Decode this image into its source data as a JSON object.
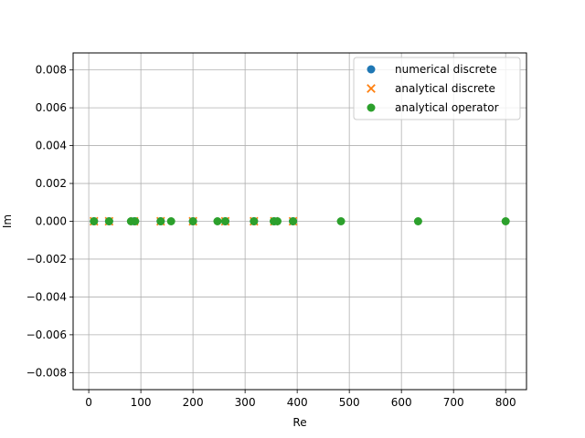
{
  "chart_data": {
    "type": "scatter",
    "xlabel": "Re",
    "ylabel": "Im",
    "xlim": [
      -30,
      840
    ],
    "ylim": [
      -0.0089,
      0.0089
    ],
    "x_ticks": [
      0,
      100,
      200,
      300,
      400,
      500,
      600,
      700,
      800
    ],
    "y_ticks": [
      -0.008,
      -0.006,
      -0.004,
      -0.002,
      0.0,
      0.002,
      0.004,
      0.006,
      0.008
    ],
    "x_tick_labels": [
      "0",
      "100",
      "200",
      "300",
      "400",
      "500",
      "600",
      "700",
      "800"
    ],
    "y_tick_labels": [
      "−0.008",
      "−0.006",
      "−0.004",
      "−0.002",
      "0.000",
      "0.002",
      "0.004",
      "0.006",
      "0.008"
    ],
    "grid": true,
    "legend_position": "top-right",
    "series": [
      {
        "name": "numerical discrete",
        "marker": "circle",
        "color": "#1f77b4",
        "x": [
          10,
          39,
          87,
          138,
          200,
          262,
          317,
          356,
          392
        ],
        "y": [
          0,
          0,
          0,
          0,
          0,
          0,
          0,
          0,
          0
        ]
      },
      {
        "name": "analytical discrete",
        "marker": "x",
        "color": "#ff7f0e",
        "x": [
          10,
          39,
          87,
          138,
          200,
          262,
          317,
          356,
          392
        ],
        "y": [
          0,
          0,
          0,
          0,
          0,
          0,
          0,
          0,
          0
        ]
      },
      {
        "name": "analytical operator",
        "marker": "circle",
        "color": "#2ca02c",
        "x": [
          10,
          39,
          81,
          89,
          138,
          158,
          200,
          247,
          262,
          317,
          355,
          362,
          392,
          484,
          632,
          800
        ],
        "y": [
          0,
          0,
          0,
          0,
          0,
          0,
          0,
          0,
          0,
          0,
          0,
          0,
          0,
          0,
          0,
          0
        ]
      }
    ]
  }
}
